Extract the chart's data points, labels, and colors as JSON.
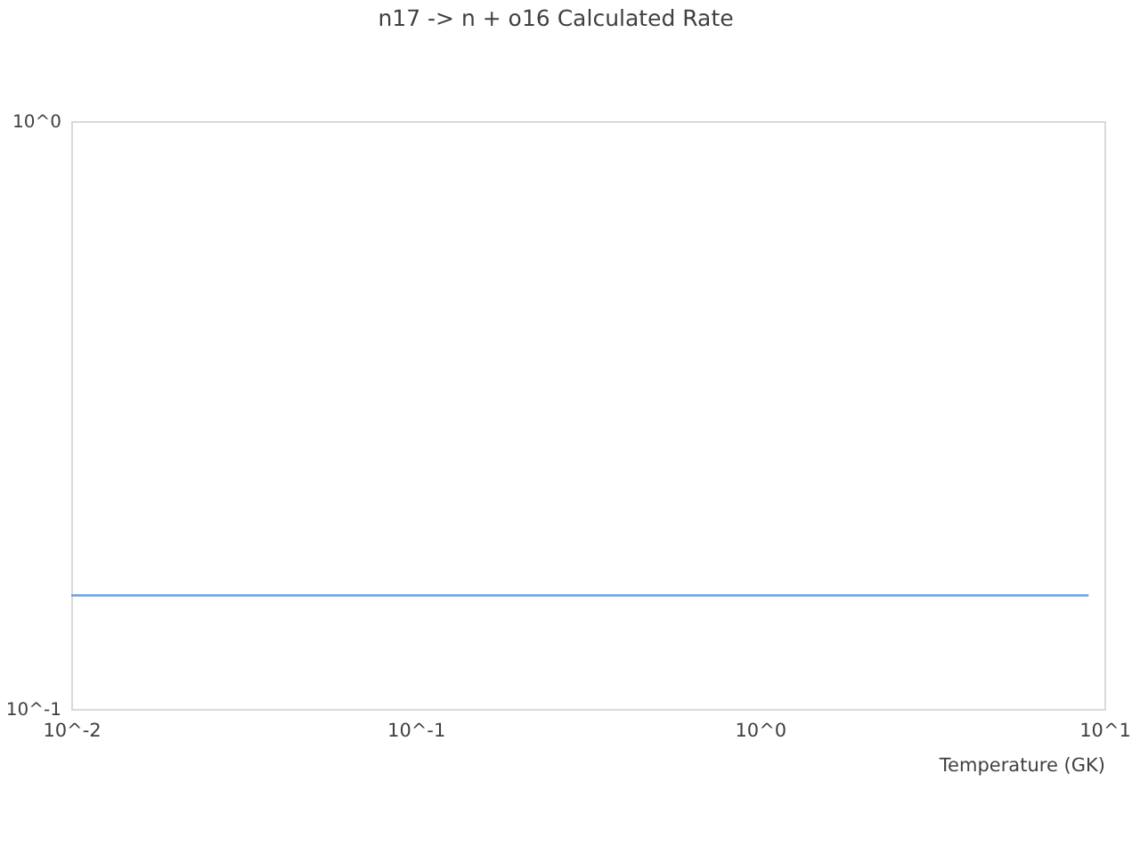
{
  "chart_data": {
    "type": "line",
    "title": "n17 -> n + o16 Calculated Rate",
    "xlabel": "Temperature (GK)",
    "x": [
      0.01,
      9
    ],
    "values": [
      0.156,
      0.156
    ],
    "color": "#62a0e4",
    "log": "xy",
    "xlim": [
      0.01,
      10
    ],
    "ylim": [
      0.1,
      1
    ],
    "xticks": [
      {
        "value": 0.01,
        "label": "10^-2"
      },
      {
        "value": 0.1,
        "label": "10^-1"
      },
      {
        "value": 1,
        "label": "10^0"
      },
      {
        "value": 10,
        "label": "10^1"
      }
    ],
    "yticks": [
      {
        "value": 0.1,
        "label": "10^-1"
      },
      {
        "value": 1,
        "label": "10^0"
      }
    ],
    "grid": false,
    "legend": false
  }
}
